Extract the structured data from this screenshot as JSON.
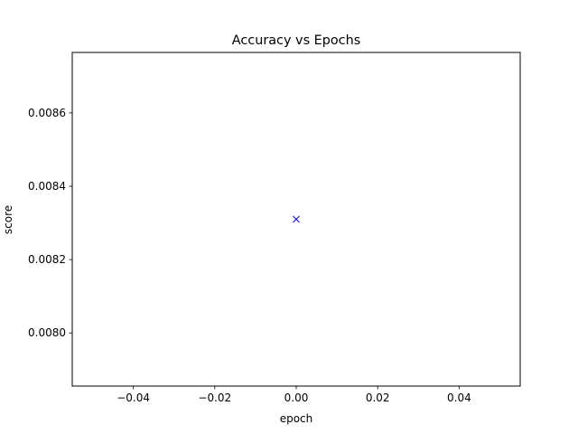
{
  "chart_data": {
    "type": "scatter",
    "title": "Accuracy vs Epochs",
    "xlabel": "epoch",
    "ylabel": "score",
    "xlim": [
      -0.055,
      0.055
    ],
    "ylim": [
      0.007855,
      0.008765
    ],
    "xticks": [
      -0.04,
      -0.02,
      0.0,
      0.02,
      0.04
    ],
    "xtick_labels": [
      "−0.04",
      "−0.02",
      "0.00",
      "0.02",
      "0.04"
    ],
    "yticks": [
      0.008,
      0.0082,
      0.0084,
      0.0086
    ],
    "ytick_labels": [
      "0.0080",
      "0.0082",
      "0.0084",
      "0.0086"
    ],
    "grid": false,
    "series": [
      {
        "marker": "x",
        "color": "#0000ff",
        "x": [
          0.0
        ],
        "y": [
          0.00831
        ]
      }
    ]
  }
}
